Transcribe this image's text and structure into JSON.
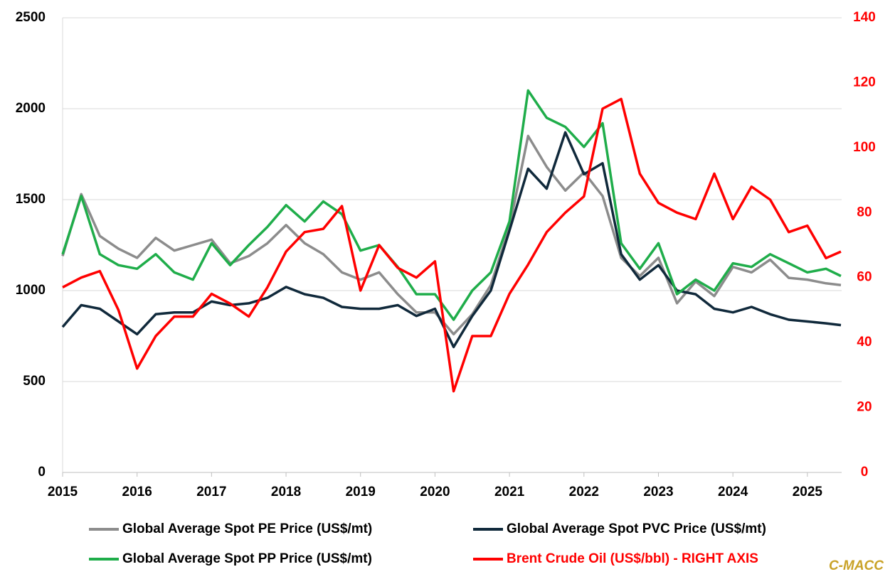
{
  "chart_data": {
    "type": "line",
    "x": [
      2015,
      2015.25,
      2015.5,
      2015.75,
      2016,
      2016.25,
      2016.5,
      2016.75,
      2017,
      2017.25,
      2017.5,
      2017.75,
      2018,
      2018.25,
      2018.5,
      2018.75,
      2019,
      2019.25,
      2019.5,
      2019.75,
      2020,
      2020.25,
      2020.5,
      2020.75,
      2021,
      2021.25,
      2021.5,
      2021.75,
      2022,
      2022.25,
      2022.5,
      2022.75,
      2023,
      2023.25,
      2023.5,
      2023.75,
      2024,
      2024.25,
      2024.5,
      2024.75,
      2025,
      2025.25,
      2025.45
    ],
    "series": [
      {
        "name": "Global Average Spot PE Price (US$/mt)",
        "color": "#8c8c8c",
        "values": [
          1190,
          1530,
          1300,
          1230,
          1180,
          1290,
          1220,
          1250,
          1280,
          1150,
          1190,
          1260,
          1360,
          1260,
          1200,
          1100,
          1060,
          1100,
          980,
          880,
          880,
          760,
          870,
          1030,
          1350,
          1850,
          1680,
          1550,
          1650,
          1520,
          1180,
          1080,
          1180,
          930,
          1050,
          970,
          1130,
          1100,
          1170,
          1070,
          1060,
          1040,
          1030
        ]
      },
      {
        "name": "Global Average Spot PVC Price (US$/mt)",
        "color": "#10293b",
        "values": [
          800,
          920,
          900,
          830,
          760,
          870,
          880,
          880,
          940,
          920,
          930,
          960,
          1020,
          980,
          960,
          910,
          900,
          900,
          920,
          860,
          900,
          690,
          860,
          1000,
          1330,
          1670,
          1560,
          1870,
          1640,
          1700,
          1200,
          1060,
          1140,
          1000,
          980,
          900,
          880,
          910,
          870,
          840,
          830,
          820,
          810
        ]
      },
      {
        "name": "Global Average Spot PP Price (US$/mt)",
        "color": "#1fad4a",
        "values": [
          1200,
          1520,
          1200,
          1140,
          1120,
          1200,
          1100,
          1060,
          1260,
          1140,
          1250,
          1350,
          1470,
          1380,
          1490,
          1420,
          1220,
          1250,
          1130,
          980,
          980,
          840,
          1000,
          1100,
          1380,
          2100,
          1950,
          1900,
          1790,
          1920,
          1260,
          1120,
          1260,
          980,
          1060,
          1000,
          1150,
          1130,
          1200,
          1150,
          1100,
          1120,
          1080
        ]
      },
      {
        "name": "Brent Crude Oil (US$/bbl) - RIGHT AXIS",
        "color": "#ff0000",
        "axis": "y2",
        "values": [
          57,
          60,
          62,
          50,
          32,
          42,
          48,
          48,
          55,
          52,
          48,
          57,
          68,
          74,
          75,
          82,
          56,
          70,
          63,
          60,
          65,
          25,
          42,
          42,
          55,
          64,
          74,
          80,
          85,
          112,
          115,
          92,
          83,
          80,
          78,
          92,
          78,
          88,
          84,
          74,
          76,
          66,
          68
        ]
      }
    ],
    "xlim": [
      2015,
      2025.46
    ],
    "xticks": [
      2015,
      2016,
      2017,
      2018,
      2019,
      2020,
      2021,
      2022,
      2023,
      2024,
      2025
    ],
    "ylim": [
      0,
      2500
    ],
    "yticks": [
      0,
      500,
      1000,
      1500,
      2000,
      2500
    ],
    "y2lim": [
      0,
      140
    ],
    "y2ticks": [
      0,
      20,
      40,
      60,
      80,
      100,
      120,
      140
    ],
    "y2color": "#ff0000",
    "grid": true,
    "legend": "bottom",
    "annotation": "C-MACC"
  }
}
